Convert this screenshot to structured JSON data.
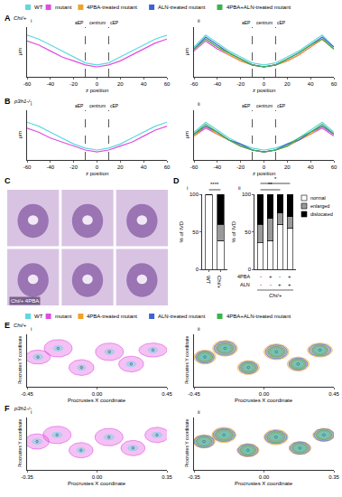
{
  "legend_entries": [
    {
      "name": "WT",
      "color": "#5fd8e0"
    },
    {
      "name": "mutant",
      "color": "#e04ce0"
    },
    {
      "name": "4PBA-treated mutant",
      "color": "#f2a22a"
    },
    {
      "name": "ALN-treated mutant",
      "color": "#3f62d6"
    },
    {
      "name": "4PBA+ALN-treated mutant",
      "color": "#3bb34a"
    }
  ],
  "chart_data": [
    {
      "panel": "A",
      "genotype": "Chi/+",
      "subpanel": "i",
      "type": "line",
      "xlabel": "z position",
      "ylabel": "μm",
      "x": [
        -60,
        -50,
        -40,
        -30,
        -20,
        -10,
        0,
        10,
        20,
        30,
        40,
        50,
        60
      ],
      "xlim": [
        -60,
        60
      ],
      "xticks": [
        -60,
        -40,
        -20,
        0,
        20,
        40,
        60
      ],
      "ylim": [
        0,
        25
      ],
      "tick_labels": "x",
      "grid": false,
      "vlines": [
        -10,
        10
      ],
      "region_labels": [
        "aEP",
        "centrum",
        "cEP"
      ],
      "series": [
        {
          "name": "WT",
          "color": "#5fd8e0",
          "values": [
            21,
            19,
            16,
            13,
            10,
            7,
            6,
            7,
            10,
            13,
            16,
            19,
            21
          ]
        },
        {
          "name": "mutant",
          "color": "#e04ce0",
          "values": [
            18,
            16,
            13,
            10,
            8,
            6,
            5,
            6,
            8,
            11,
            14,
            17,
            19
          ]
        }
      ]
    },
    {
      "subpanel": "ii",
      "type": "line",
      "xlabel": "z position",
      "ylabel": "μm",
      "x": [
        -60,
        -50,
        -40,
        -30,
        -20,
        -10,
        0,
        10,
        20,
        30,
        40,
        50,
        60
      ],
      "xlim": [
        -60,
        60
      ],
      "xticks": [
        -60,
        -40,
        -20,
        0,
        20,
        40,
        60
      ],
      "ylim": [
        0,
        25
      ],
      "tick_labels": "x",
      "grid": false,
      "vlines": [
        -10,
        10
      ],
      "region_labels": [
        "aEP",
        "centrum",
        "cEP"
      ],
      "series": [
        {
          "name": "WT",
          "color": "#5fd8e0",
          "values": [
            15,
            21,
            17,
            13,
            10,
            7,
            6,
            7,
            10,
            13,
            17,
            21,
            15
          ]
        },
        {
          "name": "mutant",
          "color": "#e04ce0",
          "values": [
            13,
            18,
            14,
            11,
            8,
            6,
            5,
            6,
            8,
            11,
            15,
            19,
            14
          ]
        },
        {
          "name": "4PBA-treated mutant",
          "color": "#f2a22a",
          "values": [
            14,
            19,
            15,
            11,
            8,
            6,
            5,
            6,
            8,
            11,
            15,
            19,
            14
          ]
        },
        {
          "name": "ALN-treated mutant",
          "color": "#3f62d6",
          "values": [
            14,
            20,
            16,
            12,
            9,
            6,
            5,
            6,
            9,
            12,
            16,
            20,
            15
          ]
        },
        {
          "name": "4PBA+ALN-treated mutant",
          "color": "#3bb34a",
          "values": [
            14,
            19,
            15,
            12,
            9,
            6,
            5,
            6,
            9,
            12,
            16,
            19,
            14
          ]
        }
      ]
    },
    {
      "panel": "B",
      "genotype": "p3h1-/-",
      "subpanel": "i",
      "type": "line",
      "xlabel": "z position",
      "ylabel": "μm",
      "x": [
        -60,
        -50,
        -40,
        -30,
        -20,
        -10,
        0,
        10,
        20,
        30,
        40,
        50,
        60
      ],
      "xlim": [
        -60,
        60
      ],
      "xticks": [
        -60,
        -40,
        -20,
        0,
        20,
        40,
        60
      ],
      "ylim": [
        0,
        25
      ],
      "tick_labels": "x",
      "grid": false,
      "vlines": [
        -10,
        10
      ],
      "region_labels": [
        "aEP",
        "centrum",
        "cEP"
      ],
      "series": [
        {
          "name": "WT",
          "color": "#5fd8e0",
          "values": [
            19,
            17,
            14,
            11,
            8,
            6,
            5,
            6,
            8,
            11,
            14,
            17,
            19
          ]
        },
        {
          "name": "mutant",
          "color": "#e04ce0",
          "values": [
            16,
            14,
            11,
            9,
            7,
            5,
            4,
            5,
            7,
            9,
            12,
            15,
            17
          ]
        }
      ]
    },
    {
      "subpanel": "ii",
      "type": "line",
      "xlabel": "z position",
      "ylabel": "μm",
      "x": [
        -60,
        -50,
        -40,
        -30,
        -20,
        -10,
        0,
        10,
        20,
        30,
        40,
        50,
        60
      ],
      "xlim": [
        -60,
        60
      ],
      "xticks": [
        -60,
        -40,
        -20,
        0,
        20,
        40,
        60
      ],
      "ylim": [
        0,
        25
      ],
      "tick_labels": "x",
      "grid": false,
      "vlines": [
        -10,
        10
      ],
      "region_labels": [
        "aEP",
        "centrum",
        "cEP"
      ],
      "series": [
        {
          "name": "WT",
          "color": "#5fd8e0",
          "values": [
            14,
            19,
            15,
            11,
            8,
            6,
            5,
            6,
            8,
            11,
            15,
            19,
            14
          ]
        },
        {
          "name": "mutant",
          "color": "#e04ce0",
          "values": [
            12,
            16,
            13,
            10,
            7,
            5,
            4,
            5,
            7,
            10,
            13,
            16,
            12
          ]
        },
        {
          "name": "4PBA-treated mutant",
          "color": "#f2a22a",
          "values": [
            12,
            17,
            13,
            10,
            7,
            5,
            4,
            5,
            7,
            10,
            13,
            17,
            13
          ]
        },
        {
          "name": "ALN-treated mutant",
          "color": "#3f62d6",
          "values": [
            13,
            17,
            14,
            10,
            8,
            5,
            4,
            5,
            8,
            10,
            14,
            17,
            13
          ]
        },
        {
          "name": "4PBA+ALN-treated mutant",
          "color": "#3bb34a",
          "values": [
            13,
            18,
            14,
            10,
            7,
            5,
            4,
            5,
            7,
            11,
            14,
            18,
            13
          ]
        }
      ]
    },
    {
      "panel": "C",
      "type": "images",
      "image_labels": [
        "Chi/+ 4PBA"
      ]
    },
    {
      "panel": "D",
      "subpanel": "i",
      "type": "bar",
      "stacked": true,
      "grid": false,
      "ylabel": "% of IVD",
      "categories": [
        "WT",
        "Chi/+"
      ],
      "ylim": [
        0,
        100
      ],
      "yticks": [
        0,
        50,
        100
      ],
      "series": [
        {
          "name": "normal",
          "color": "#ffffff",
          "values": [
            100,
            38
          ]
        },
        {
          "name": "enlarged",
          "color": "#9a9a9a",
          "values": [
            0,
            22
          ]
        },
        {
          "name": "dislocated",
          "color": "#000000",
          "values": [
            0,
            40
          ]
        }
      ],
      "significance": [
        {
          "from": 0,
          "to": 1,
          "label": "****"
        }
      ]
    },
    {
      "subpanel": "ii",
      "type": "bar",
      "stacked": true,
      "grid": false,
      "legend": "right",
      "ylabel": "% of IVD",
      "categories": [
        null,
        null,
        null,
        null
      ],
      "treatments": [
        {
          "name": "4PBA",
          "values": [
            "-",
            "+",
            "-",
            "+"
          ]
        },
        {
          "name": "ALN",
          "values": [
            "-",
            "-",
            "+",
            "+"
          ]
        }
      ],
      "group_label": "Chi/+",
      "ylim": [
        0,
        100
      ],
      "yticks": [
        0,
        50,
        100
      ],
      "series": [
        {
          "name": "normal",
          "color": "#ffffff",
          "values": [
            35,
            38,
            60,
            55
          ]
        },
        {
          "name": "enlarged",
          "color": "#9a9a9a",
          "values": [
            25,
            30,
            15,
            15
          ]
        },
        {
          "name": "dislocated",
          "color": "#000000",
          "values": [
            40,
            32,
            25,
            30
          ]
        }
      ],
      "significance": [
        {
          "from": 0,
          "to": 2,
          "label": "**"
        },
        {
          "from": 0,
          "to": 3,
          "label": "*"
        }
      ]
    },
    {
      "panel": "E",
      "genotype": "Chi/+",
      "subpanel": "i",
      "type": "ellipse_scatter",
      "grid": false,
      "xlabel": "Procrustes X coordinate",
      "ylabel": "Procrustes Y coordinate",
      "xlim": [
        -0.45,
        0.45
      ],
      "xticks": [
        -0.45,
        {
          "value": 0,
          "label": "0.00"
        },
        0.45
      ],
      "ylim": [
        -0.15,
        0.15
      ],
      "tick_labels": "x",
      "series": [
        {
          "name": "mutant",
          "color": "#e04ce0",
          "x": [
            -0.38,
            -0.25,
            -0.1,
            0.08,
            0.22,
            0.36
          ],
          "y": [
            0.02,
            0.07,
            -0.04,
            0.05,
            -0.02,
            0.06
          ],
          "rx": [
            0.08,
            0.09,
            0.08,
            0.09,
            0.08,
            0.09
          ],
          "ry": [
            0.04,
            0.05,
            0.045,
            0.05,
            0.045,
            0.04
          ]
        },
        {
          "name": "WT",
          "color": "#5fd8e0",
          "x": [
            -0.38,
            -0.25,
            -0.1,
            0.08,
            0.22,
            0.36
          ],
          "y": [
            0.02,
            0.07,
            -0.04,
            0.05,
            -0.02,
            0.06
          ],
          "rx": [
            0.03,
            0.03,
            0.025,
            0.03,
            0.03,
            0.03
          ],
          "ry": [
            0.015,
            0.015,
            0.015,
            0.015,
            0.015,
            0.015
          ]
        }
      ]
    },
    {
      "subpanel": "ii",
      "type": "ellipse_scatter",
      "grid": false,
      "xlabel": "Procrustes X coordinate",
      "ylabel": "Procrustes Y coordinate",
      "xlim": [
        -0.45,
        0.45
      ],
      "xticks": [
        -0.45,
        {
          "value": 0,
          "label": "0.00"
        },
        0.45
      ],
      "ylim": [
        -0.15,
        0.15
      ],
      "tick_labels": "x",
      "series": [
        {
          "name": "4PBA-treated mutant",
          "color": "#f2a22a",
          "x": [
            -0.38,
            -0.25,
            -0.1,
            0.08,
            0.22,
            0.36
          ],
          "y": [
            0.02,
            0.07,
            -0.04,
            0.05,
            -0.02,
            0.06
          ],
          "rx": [
            0.07,
            0.08,
            0.07,
            0.08,
            0.07,
            0.08
          ],
          "ry": [
            0.04,
            0.045,
            0.04,
            0.045,
            0.04,
            0.04
          ]
        },
        {
          "name": "ALN-treated mutant",
          "color": "#3f62d6",
          "x": [
            -0.38,
            -0.25,
            -0.1,
            0.08,
            0.22,
            0.36
          ],
          "y": [
            0.02,
            0.07,
            -0.04,
            0.05,
            -0.02,
            0.06
          ],
          "rx": [
            0.06,
            0.07,
            0.06,
            0.07,
            0.06,
            0.07
          ],
          "ry": [
            0.035,
            0.04,
            0.035,
            0.04,
            0.035,
            0.035
          ]
        },
        {
          "name": "4PBA+ALN-treated mutant",
          "color": "#3bb34a",
          "x": [
            -0.38,
            -0.25,
            -0.1,
            0.08,
            0.22,
            0.36
          ],
          "y": [
            0.02,
            0.07,
            -0.04,
            0.05,
            -0.02,
            0.06
          ],
          "rx": [
            0.05,
            0.055,
            0.05,
            0.055,
            0.05,
            0.05
          ],
          "ry": [
            0.028,
            0.03,
            0.028,
            0.03,
            0.028,
            0.028
          ]
        },
        {
          "name": "WT",
          "color": "#5fd8e0",
          "x": [
            -0.38,
            -0.25,
            -0.1,
            0.08,
            0.22,
            0.36
          ],
          "y": [
            0.02,
            0.07,
            -0.04,
            0.05,
            -0.02,
            0.06
          ],
          "rx": [
            0.03,
            0.03,
            0.025,
            0.03,
            0.03,
            0.03
          ],
          "ry": [
            0.015,
            0.015,
            0.015,
            0.015,
            0.015,
            0.015
          ]
        }
      ]
    },
    {
      "panel": "F",
      "genotype": "p3h1-/-",
      "subpanel": "i",
      "type": "ellipse_scatter",
      "grid": false,
      "xlabel": "Procrustes X coordinate",
      "ylabel": "Procrustes Y coordinate",
      "xlim": [
        -0.35,
        0.35
      ],
      "xticks": [
        -0.35,
        {
          "value": 0,
          "label": "0.00"
        },
        0.35
      ],
      "ylim": [
        -0.12,
        0.12
      ],
      "tick_labels": "x",
      "series": [
        {
          "name": "mutant",
          "color": "#e04ce0",
          "x": [
            -0.3,
            -0.2,
            -0.08,
            0.06,
            0.18,
            0.3
          ],
          "y": [
            0.01,
            0.04,
            -0.03,
            0.03,
            -0.02,
            0.04
          ],
          "rx": [
            0.06,
            0.07,
            0.06,
            0.07,
            0.06,
            0.06
          ],
          "ry": [
            0.035,
            0.04,
            0.035,
            0.04,
            0.035,
            0.035
          ]
        },
        {
          "name": "WT",
          "color": "#5fd8e0",
          "x": [
            -0.3,
            -0.2,
            -0.08,
            0.06,
            0.18,
            0.3
          ],
          "y": [
            0.01,
            0.04,
            -0.03,
            0.03,
            -0.02,
            0.04
          ],
          "rx": [
            0.025,
            0.025,
            0.02,
            0.025,
            0.025,
            0.025
          ],
          "ry": [
            0.012,
            0.012,
            0.012,
            0.012,
            0.012,
            0.012
          ]
        }
      ]
    },
    {
      "subpanel": "ii",
      "type": "ellipse_scatter",
      "grid": false,
      "xlabel": "Procrustes X coordinate",
      "ylabel": "Procrustes Y coordinate",
      "xlim": [
        -0.35,
        0.35
      ],
      "xticks": [
        -0.35,
        {
          "value": 0,
          "label": "0.00"
        },
        0.35
      ],
      "ylim": [
        -0.12,
        0.12
      ],
      "tick_labels": "x",
      "series": [
        {
          "name": "4PBA-treated mutant",
          "color": "#f2a22a",
          "x": [
            -0.3,
            -0.2,
            -0.08,
            0.06,
            0.18,
            0.3
          ],
          "y": [
            0.01,
            0.04,
            -0.03,
            0.03,
            -0.02,
            0.04
          ],
          "rx": [
            0.055,
            0.06,
            0.055,
            0.06,
            0.055,
            0.055
          ],
          "ry": [
            0.03,
            0.035,
            0.03,
            0.035,
            0.03,
            0.03
          ]
        },
        {
          "name": "ALN-treated mutant",
          "color": "#3f62d6",
          "x": [
            -0.3,
            -0.2,
            -0.08,
            0.06,
            0.18,
            0.3
          ],
          "y": [
            0.01,
            0.04,
            -0.03,
            0.03,
            -0.02,
            0.04
          ],
          "rx": [
            0.05,
            0.055,
            0.05,
            0.055,
            0.05,
            0.05
          ],
          "ry": [
            0.028,
            0.03,
            0.028,
            0.03,
            0.028,
            0.028
          ]
        },
        {
          "name": "4PBA+ALN-treated mutant",
          "color": "#3bb34a",
          "x": [
            -0.3,
            -0.2,
            -0.08,
            0.06,
            0.18,
            0.3
          ],
          "y": [
            0.01,
            0.04,
            -0.03,
            0.03,
            -0.02,
            0.04
          ],
          "rx": [
            0.04,
            0.045,
            0.04,
            0.045,
            0.04,
            0.04
          ],
          "ry": [
            0.022,
            0.025,
            0.022,
            0.025,
            0.022,
            0.022
          ]
        },
        {
          "name": "WT",
          "color": "#5fd8e0",
          "x": [
            -0.3,
            -0.2,
            -0.08,
            0.06,
            0.18,
            0.3
          ],
          "y": [
            0.01,
            0.04,
            -0.03,
            0.03,
            -0.02,
            0.04
          ],
          "rx": [
            0.025,
            0.025,
            0.02,
            0.025,
            0.025,
            0.025
          ],
          "ry": [
            0.012,
            0.012,
            0.012,
            0.012,
            0.012,
            0.012
          ]
        }
      ]
    }
  ]
}
